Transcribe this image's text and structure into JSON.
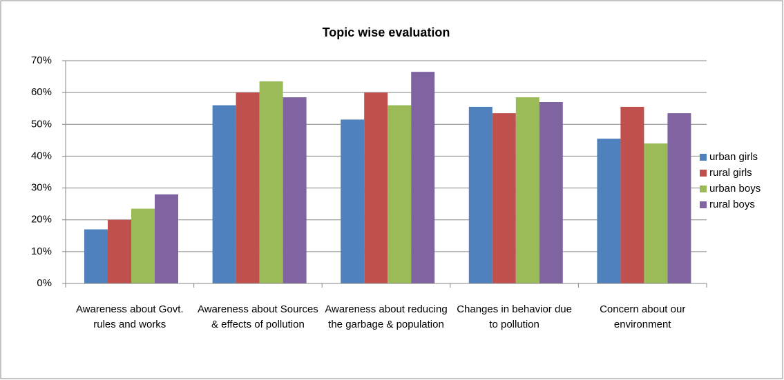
{
  "chart_data": {
    "type": "bar",
    "title": "Topic wise evaluation",
    "categories": [
      "Awareness about Govt. rules and works",
      "Awareness about Sources & effects of pollution",
      "Awareness about reducing the garbage & population",
      "Changes in behavior due to pollution",
      "Concern about our environment"
    ],
    "series": [
      {
        "name": "urban girls",
        "color": "#4f81bd",
        "values": [
          17,
          56,
          51.5,
          55.5,
          45.5
        ]
      },
      {
        "name": "rural girls",
        "color": "#c0504d",
        "values": [
          20,
          60,
          60,
          53.5,
          55.5
        ]
      },
      {
        "name": "urban boys",
        "color": "#9bbb59",
        "values": [
          23.5,
          63.5,
          56,
          58.5,
          44
        ]
      },
      {
        "name": "rural boys",
        "color": "#8064a2",
        "values": [
          28,
          58.5,
          66.5,
          57,
          53.5
        ]
      }
    ],
    "ylim": [
      0,
      70
    ],
    "yticks": [
      {
        "value": 0,
        "label": "0%"
      },
      {
        "value": 10,
        "label": "10%"
      },
      {
        "value": 20,
        "label": "20%"
      },
      {
        "value": 30,
        "label": "30%"
      },
      {
        "value": 40,
        "label": "40%"
      },
      {
        "value": 50,
        "label": "50%"
      },
      {
        "value": 60,
        "label": "60%"
      },
      {
        "value": 70,
        "label": "70%"
      }
    ],
    "grid": true,
    "legend": "right"
  }
}
